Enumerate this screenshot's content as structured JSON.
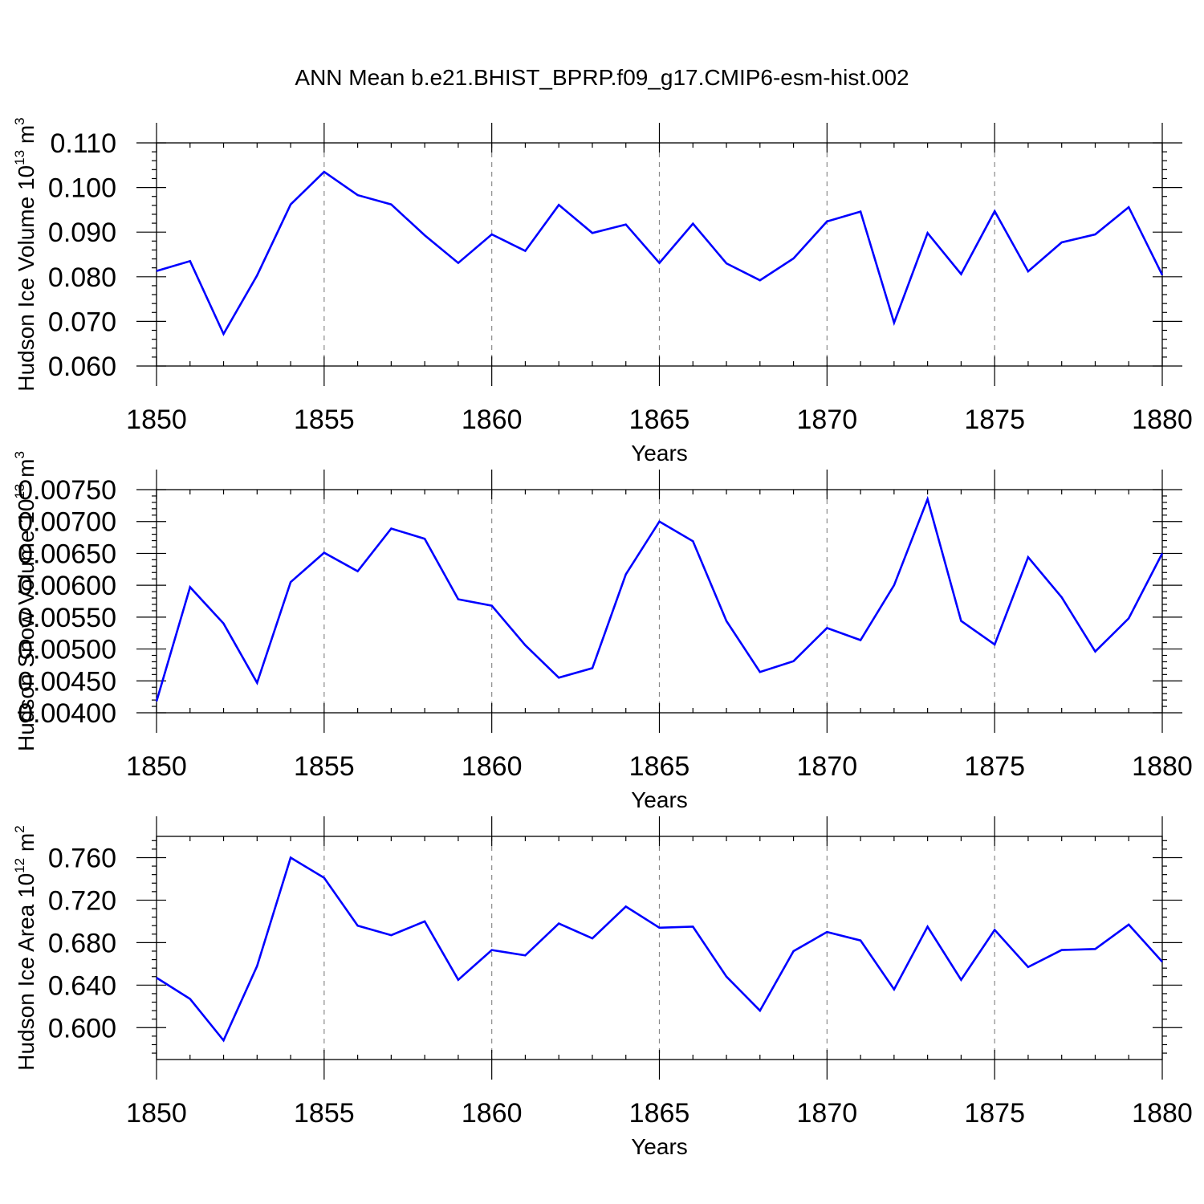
{
  "title": "ANN Mean b.e21.BHIST_BPRP.f09_g17.CMIP6-esm-hist.002",
  "chart_data": [
    {
      "type": "line",
      "xlabel": "Years",
      "ylabel": "Hudson Ice Volume 10",
      "ylabel_exp": "13",
      "ylabel_unit": " m",
      "ylabel_unit_exp": "3",
      "xlim": [
        1850,
        1880
      ],
      "ylim": [
        0.06,
        0.11
      ],
      "x_ticks": [
        1850,
        1855,
        1860,
        1865,
        1870,
        1875,
        1880
      ],
      "x_tick_labels": [
        "1850",
        "1855",
        "1860",
        "1865",
        "1870",
        "1875",
        "1880"
      ],
      "y_ticks": [
        0.06,
        0.07,
        0.08,
        0.09,
        0.1,
        0.11
      ],
      "y_tick_labels": [
        "0.060",
        "0.070",
        "0.080",
        "0.090",
        "0.100",
        "0.110"
      ],
      "grid": "vertical dashed at major x ticks",
      "series": [
        {
          "name": "Hudson Ice Volume",
          "color": "#0000ff",
          "x": [
            1850,
            1851,
            1852,
            1853,
            1854,
            1855,
            1856,
            1857,
            1858,
            1859,
            1860,
            1861,
            1862,
            1863,
            1864,
            1865,
            1866,
            1867,
            1868,
            1869,
            1870,
            1871,
            1872,
            1873,
            1874,
            1875,
            1876,
            1877,
            1878,
            1879,
            1880
          ],
          "y": [
            0.0813,
            0.0835,
            0.0672,
            0.0803,
            0.0962,
            0.1035,
            0.0983,
            0.0962,
            0.0893,
            0.0831,
            0.0895,
            0.0858,
            0.0961,
            0.0898,
            0.0917,
            0.0831,
            0.0919,
            0.083,
            0.0792,
            0.0841,
            0.0924,
            0.0946,
            0.0697,
            0.0898,
            0.0806,
            0.0947,
            0.0812,
            0.0877,
            0.0895,
            0.0956,
            0.0804
          ]
        }
      ]
    },
    {
      "type": "line",
      "xlabel": "Years",
      "ylabel": "Hudson Snow Volume 10",
      "ylabel_exp": "13",
      "ylabel_unit": " m",
      "ylabel_unit_exp": "3",
      "xlim": [
        1850,
        1880
      ],
      "ylim": [
        0.004,
        0.0075
      ],
      "x_ticks": [
        1850,
        1855,
        1860,
        1865,
        1870,
        1875,
        1880
      ],
      "x_tick_labels": [
        "1850",
        "1855",
        "1860",
        "1865",
        "1870",
        "1875",
        "1880"
      ],
      "y_ticks": [
        0.004,
        0.0045,
        0.005,
        0.0055,
        0.006,
        0.0065,
        0.007,
        0.0075
      ],
      "y_tick_labels": [
        "0.00400",
        "0.00450",
        "0.00500",
        "0.00550",
        "0.00600",
        "0.00650",
        "0.00700",
        "0.00750"
      ],
      "grid": "vertical dashed at major x ticks",
      "series": [
        {
          "name": "Hudson Snow Volume",
          "color": "#0000ff",
          "x": [
            1850,
            1851,
            1852,
            1853,
            1854,
            1855,
            1856,
            1857,
            1858,
            1859,
            1860,
            1861,
            1862,
            1863,
            1864,
            1865,
            1866,
            1867,
            1868,
            1869,
            1870,
            1871,
            1872,
            1873,
            1874,
            1875,
            1876,
            1877,
            1878,
            1879,
            1880
          ],
          "y": [
            0.00418,
            0.00597,
            0.0054,
            0.00447,
            0.00605,
            0.00651,
            0.00622,
            0.00689,
            0.00673,
            0.00578,
            0.00568,
            0.00506,
            0.00455,
            0.0047,
            0.00617,
            0.007,
            0.00669,
            0.00544,
            0.00464,
            0.00481,
            0.00533,
            0.00514,
            0.006,
            0.00735,
            0.00544,
            0.00507,
            0.00644,
            0.00581,
            0.00496,
            0.00548,
            0.0065
          ]
        }
      ]
    },
    {
      "type": "line",
      "xlabel": "Years",
      "ylabel": "Hudson Ice Area 10",
      "ylabel_exp": "12",
      "ylabel_unit": " m",
      "ylabel_unit_exp": "2",
      "xlim": [
        1850,
        1880
      ],
      "ylim": [
        0.57,
        0.78
      ],
      "x_ticks": [
        1850,
        1855,
        1860,
        1865,
        1870,
        1875,
        1880
      ],
      "x_tick_labels": [
        "1850",
        "1855",
        "1860",
        "1865",
        "1870",
        "1875",
        "1880"
      ],
      "y_ticks": [
        0.6,
        0.64,
        0.68,
        0.72,
        0.76
      ],
      "y_tick_labels": [
        "0.600",
        "0.640",
        "0.680",
        "0.720",
        "0.760"
      ],
      "grid": "vertical dashed at major x ticks",
      "series": [
        {
          "name": "Hudson Ice Area",
          "color": "#0000ff",
          "x": [
            1850,
            1851,
            1852,
            1853,
            1854,
            1855,
            1856,
            1857,
            1858,
            1859,
            1860,
            1861,
            1862,
            1863,
            1864,
            1865,
            1866,
            1867,
            1868,
            1869,
            1870,
            1871,
            1872,
            1873,
            1874,
            1875,
            1876,
            1877,
            1878,
            1879,
            1880
          ],
          "y": [
            0.647,
            0.627,
            0.588,
            0.658,
            0.76,
            0.741,
            0.696,
            0.687,
            0.7,
            0.645,
            0.673,
            0.668,
            0.698,
            0.684,
            0.714,
            0.694,
            0.695,
            0.648,
            0.616,
            0.672,
            0.69,
            0.682,
            0.636,
            0.695,
            0.645,
            0.692,
            0.657,
            0.673,
            0.674,
            0.697,
            0.662
          ]
        }
      ]
    }
  ]
}
